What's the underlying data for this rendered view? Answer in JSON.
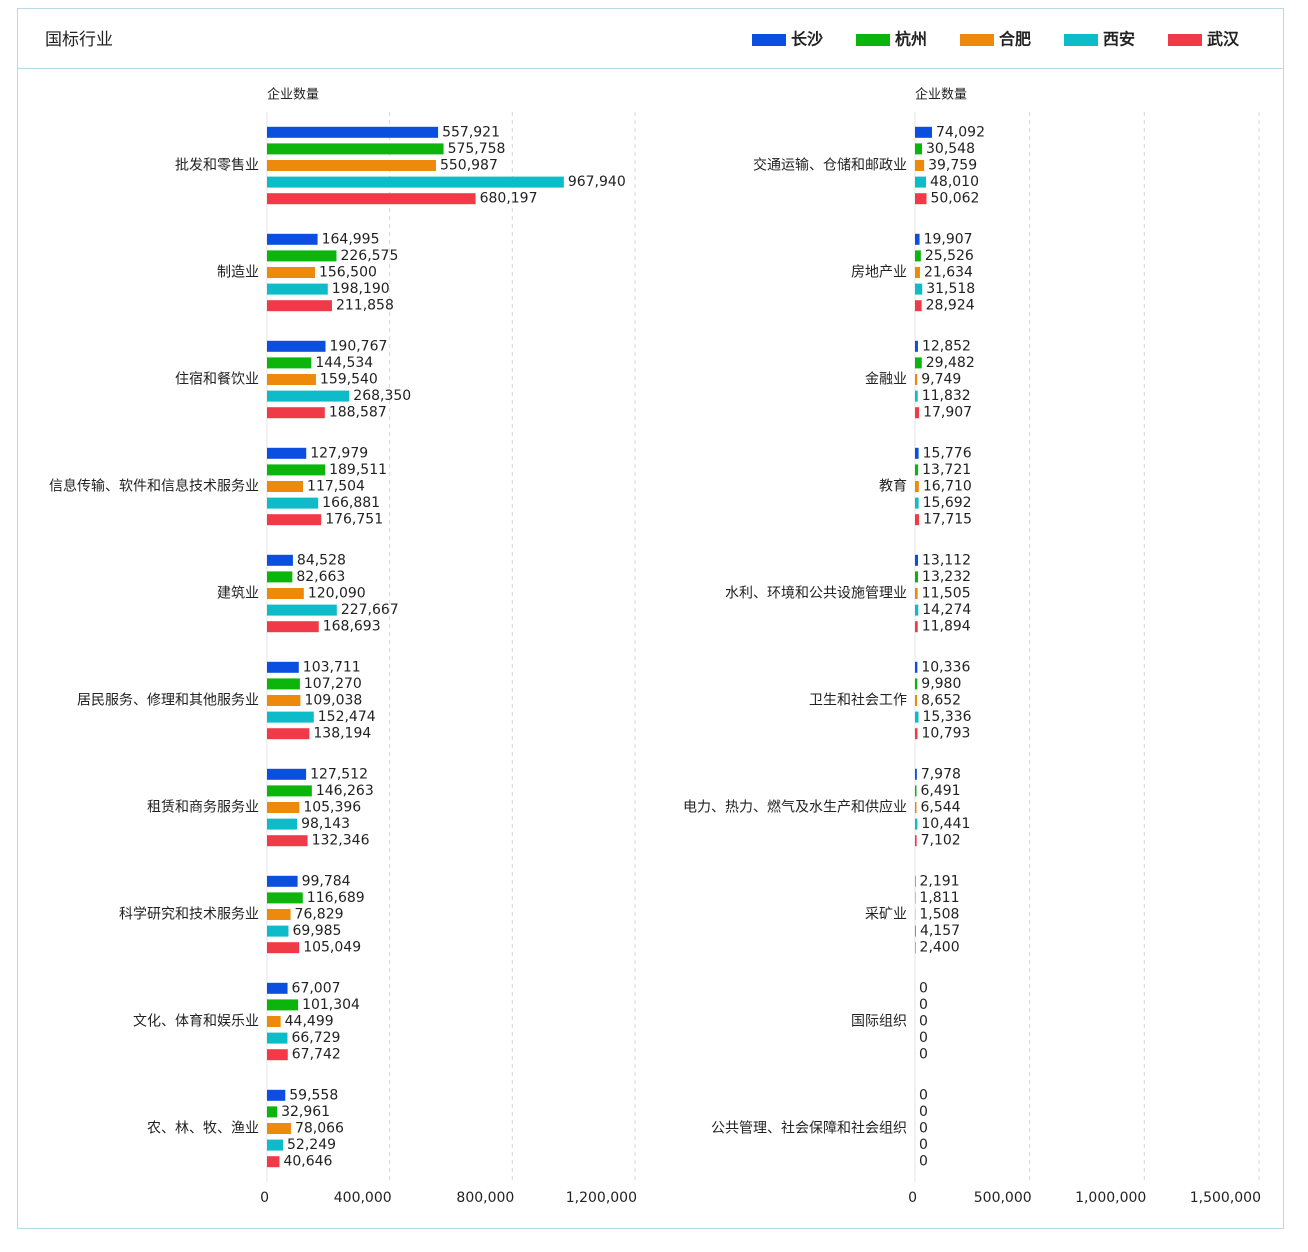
{
  "title": "国标行业",
  "legend_position": "top-right",
  "chart_data": [
    {
      "type": "bar",
      "orientation": "horizontal",
      "axis_label": "企业数量",
      "categories": [
        "批发和零售业",
        "制造业",
        "住宿和餐饮业",
        "信息传输、软件和信息技术服务业",
        "建筑业",
        "居民服务、修理和其他服务业",
        "租赁和商务服务业",
        "科学研究和技术服务业",
        "文化、体育和娱乐业",
        "农、林、牧、渔业"
      ],
      "xlim": [
        0,
        1200000
      ],
      "xticks": [
        0,
        {
          "value": 400000,
          "label": "400,000"
        },
        {
          "value": 800000,
          "label": "800,000"
        },
        {
          "value": 1200000,
          "label": "1,200,000"
        }
      ],
      "grid": true,
      "series": [
        {
          "name": "长沙",
          "color": "#0a4fe0",
          "values": [
            557921,
            164995,
            190767,
            127979,
            84528,
            103711,
            127512,
            99784,
            67007,
            59558
          ],
          "value_labels": [
            "557,921",
            "164,995",
            "190,767",
            "127,979",
            "84,528",
            "103,711",
            "127,512",
            "99,784",
            "67,007",
            "59,558"
          ]
        },
        {
          "name": "杭州",
          "color": "#0bb50b",
          "values": [
            575758,
            226575,
            144534,
            189511,
            82663,
            107270,
            146263,
            116689,
            101304,
            32961
          ],
          "value_labels": [
            "575,758",
            "226,575",
            "144,534",
            "189,511",
            "82,663",
            "107,270",
            "146,263",
            "116,689",
            "101,304",
            "32,961"
          ]
        },
        {
          "name": "合肥",
          "color": "#ee8a0b",
          "values": [
            550987,
            156500,
            159540,
            117504,
            120090,
            109038,
            105396,
            76829,
            44499,
            78066
          ],
          "value_labels": [
            "550,987",
            "156,500",
            "159,540",
            "117,504",
            "120,090",
            "109,038",
            "105,396",
            "76,829",
            "44,499",
            "78,066"
          ]
        },
        {
          "name": "西安",
          "color": "#0dbcc8",
          "values": [
            967940,
            198190,
            268350,
            166881,
            227667,
            152474,
            98143,
            69985,
            66729,
            52249
          ],
          "value_labels": [
            "967,940",
            "198,190",
            "268,350",
            "166,881",
            "227,667",
            "152,474",
            "98,143",
            "69,985",
            "66,729",
            "52,249"
          ]
        },
        {
          "name": "武汉",
          "color": "#f03a48",
          "values": [
            680197,
            211858,
            188587,
            176751,
            168693,
            138194,
            132346,
            105049,
            67742,
            40646
          ],
          "value_labels": [
            "680,197",
            "211,858",
            "188,587",
            "176,751",
            "168,693",
            "138,194",
            "132,346",
            "105,049",
            "67,742",
            "40,646"
          ]
        }
      ]
    },
    {
      "type": "bar",
      "orientation": "horizontal",
      "axis_label": "企业数量",
      "categories": [
        "交通运输、仓储和邮政业",
        "房地产业",
        "金融业",
        "教育",
        "水利、环境和公共设施管理业",
        "卫生和社会工作",
        "电力、热力、燃气及水生产和供应业",
        "采矿业",
        "国际组织",
        "公共管理、社会保障和社会组织"
      ],
      "xlim": [
        0,
        1500000
      ],
      "xticks": [
        0,
        {
          "value": 500000,
          "label": "500,000"
        },
        {
          "value": 1000000,
          "label": "1,000,000"
        },
        {
          "value": 1500000,
          "label": "1,500,000"
        }
      ],
      "grid": true,
      "series": [
        {
          "color": "#0a4fe0",
          "values": [
            74092,
            19907,
            12852,
            15776,
            13112,
            10336,
            7978,
            2191,
            0,
            0
          ],
          "value_labels": [
            "74,092",
            "19,907",
            "12,852",
            "15,776",
            "13,112",
            "10,336",
            "7,978",
            "2,191",
            "0",
            "0"
          ]
        },
        {
          "color": "#0bb50b",
          "values": [
            30548,
            25526,
            29482,
            13721,
            13232,
            9980,
            6491,
            1811,
            0,
            0
          ],
          "value_labels": [
            "30,548",
            "25,526",
            "29,482",
            "13,721",
            "13,232",
            "9,980",
            "6,491",
            "1,811",
            "0",
            "0"
          ]
        },
        {
          "color": "#ee8a0b",
          "values": [
            39759,
            21634,
            9749,
            16710,
            11505,
            8652,
            6544,
            1508,
            0,
            0
          ],
          "value_labels": [
            "39,759",
            "21,634",
            "9,749",
            "16,710",
            "11,505",
            "8,652",
            "6,544",
            "1,508",
            "0",
            "0"
          ]
        },
        {
          "color": "#0dbcc8",
          "values": [
            48010,
            31518,
            11832,
            15692,
            14274,
            15336,
            10441,
            4157,
            0,
            0
          ],
          "value_labels": [
            "48,010",
            "31,518",
            "11,832",
            "15,692",
            "14,274",
            "15,336",
            "10,441",
            "4,157",
            "0",
            "0"
          ]
        },
        {
          "color": "#f03a48",
          "values": [
            50062,
            28924,
            17907,
            17715,
            11894,
            10793,
            7102,
            2400,
            0,
            0
          ],
          "value_labels": [
            "50,062",
            "28,924",
            "17,907",
            "17,715",
            "11,894",
            "10,793",
            "7,102",
            "2,400",
            "0",
            "0"
          ]
        }
      ]
    }
  ]
}
